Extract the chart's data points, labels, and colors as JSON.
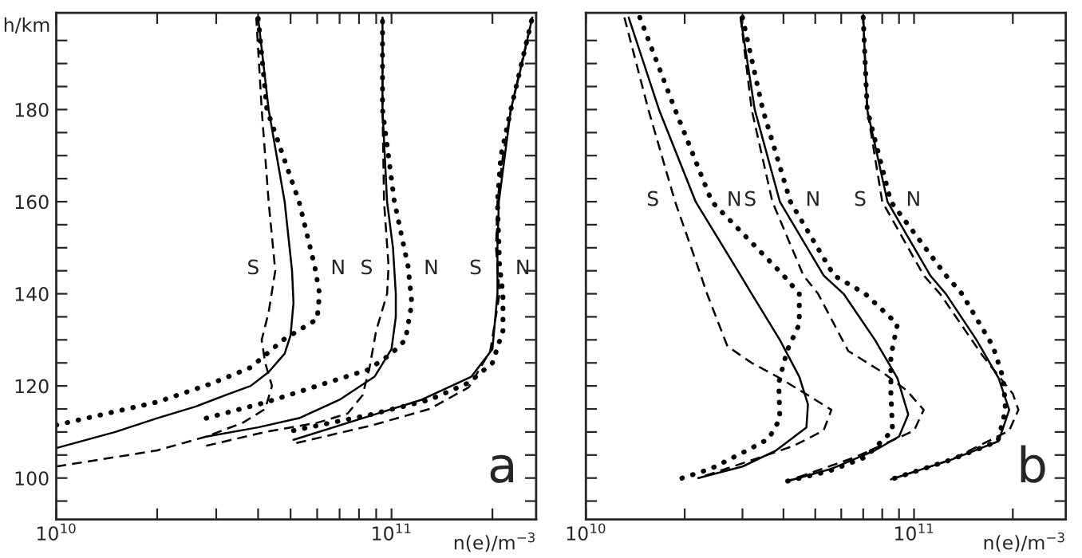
{
  "chart_data": [
    {
      "type": "line",
      "xlabel": "n(e)/m$^{−3}$",
      "ylabel": "h/km",
      "log": "x",
      "xlim": [
        10000000000.0,
        270000000000.0
      ],
      "ylim": [
        91,
        201
      ],
      "xticks": [
        {
          "value": 10000000000.0,
          "label": "10$^{10}$"
        },
        {
          "value": 20000000000.0,
          "label": null
        },
        {
          "value": 30000000000.0,
          "label": null
        },
        {
          "value": 40000000000.0,
          "label": null
        },
        {
          "value": 50000000000.0,
          "label": null
        },
        {
          "value": 60000000000.0,
          "label": null
        },
        {
          "value": 70000000000.0,
          "label": null
        },
        {
          "value": 80000000000.0,
          "label": null
        },
        {
          "value": 90000000000.0,
          "label": null
        },
        {
          "value": 100000000000.0,
          "label": "10$^{11}$"
        },
        {
          "value": 200000000000.0,
          "label": null
        }
      ],
      "yticks": [
        {
          "value": 95,
          "label": null
        },
        100,
        {
          "value": 105,
          "label": null
        },
        {
          "value": 110,
          "label": null
        },
        {
          "value": 115,
          "label": null
        },
        120,
        {
          "value": 125,
          "label": null
        },
        {
          "value": 130,
          "label": null
        },
        {
          "value": 135,
          "label": null
        },
        140,
        {
          "value": 145,
          "label": null
        },
        {
          "value": 150,
          "label": null
        },
        {
          "value": 155,
          "label": null
        },
        160,
        {
          "value": 165,
          "label": null
        },
        {
          "value": 170,
          "label": null
        },
        {
          "value": 175,
          "label": null
        },
        180,
        {
          "value": 185,
          "label": null
        },
        {
          "value": 190,
          "label": null
        },
        {
          "value": 195,
          "label": null
        }
      ],
      "series": [
        {
          "color": "#000000",
          "line_style": "solid",
          "x": [
            10000000000.0,
            15000000000.0,
            20000000000.0,
            26000000000.0,
            32000000000.0,
            38000000000.0,
            43000000000.0,
            48000000000.0,
            50000000000.0,
            51000000000.0,
            50500000000.0,
            48000000000.0,
            43000000000.0,
            40000000000.0
          ],
          "values": [
            106.5,
            110,
            113,
            115.5,
            118,
            120,
            123,
            127,
            131,
            138,
            145,
            160,
            180,
            200
          ]
        },
        {
          "color": "#000000",
          "line_style": "dashed",
          "x": [
            10000000000.0,
            20000000000.0,
            28000000000.0,
            36000000000.0,
            42000000000.0,
            44000000000.0,
            42000000000.0,
            41000000000.0,
            43000000000.0,
            45000000000.0,
            43000000000.0,
            41000000000.0,
            39500000000.0
          ],
          "values": [
            102.5,
            106,
            109,
            112,
            115,
            120,
            125,
            130,
            136,
            145,
            160,
            180,
            200
          ]
        },
        {
          "color": "#000000",
          "line_style": "dotted",
          "x": [
            10000000000.0,
            20000000000.0,
            29000000000.0,
            38000000000.0,
            47500000000.0,
            60000000000.0,
            61000000000.0,
            59000000000.0,
            53000000000.0,
            42500000000.0,
            40000000000.0
          ],
          "values": [
            111.5,
            116.5,
            120.5,
            124,
            130,
            134.5,
            140,
            146,
            160,
            180,
            200
          ]
        },
        {
          "color": "#000000",
          "line_style": "solid",
          "x": [
            28000000000.0,
            40000000000.0,
            53000000000.0,
            70000000000.0,
            89000000000.0,
            100000000000.0,
            103000000000.0,
            103000000000.0,
            101000000000.0,
            97000000000.0,
            94000000000.0,
            94000000000.0
          ],
          "values": [
            109,
            111,
            113,
            117,
            122,
            128,
            135,
            140,
            150,
            160,
            180,
            200
          ]
        },
        {
          "color": "#000000",
          "line_style": "dashed",
          "x": [
            28000000000.0,
            42000000000.0,
            60000000000.0,
            74000000000.0,
            82000000000.0,
            86000000000.0,
            90000000000.0,
            97000000000.0,
            98000000000.0,
            95000000000.0,
            94000000000.0,
            94000000000.0
          ],
          "values": [
            107,
            110,
            112,
            114,
            118,
            124,
            132,
            140,
            146,
            160,
            180,
            200
          ]
        },
        {
          "color": "#000000",
          "line_style": "dotted",
          "x": [
            28000000000.0,
            42500000000.0,
            60000000000.0,
            85000000000.0,
            100000000000.0,
            110000000000.0,
            115000000000.0,
            112000000000.0,
            102000000000.0,
            94000000000.0,
            94000000000.0
          ],
          "values": [
            113,
            116.5,
            120,
            123.5,
            127,
            130,
            138,
            146,
            160,
            180,
            200
          ]
        },
        {
          "color": "#000000",
          "line_style": "solid",
          "x": [
            51000000000.0,
            82000000000.0,
            123000000000.0,
            173000000000.0,
            200000000000.0,
            207000000000.0,
            207000000000.0,
            209000000000.0,
            227000000000.0,
            245000000000.0,
            263000000000.0
          ],
          "values": [
            108.3,
            113,
            117,
            122,
            128,
            140,
            150,
            160,
            180,
            190,
            200
          ]
        },
        {
          "color": "#000000",
          "line_style": "dashed",
          "x": [
            52000000000.0,
            87000000000.0,
            130000000000.0,
            170000000000.0,
            197000000000.0,
            210000000000.0,
            205000000000.0,
            207000000000.0,
            215000000000.0,
            227000000000.0,
            263000000000.0
          ],
          "values": [
            107.6,
            111.4,
            115,
            119.7,
            127.6,
            140,
            150,
            160,
            170,
            180,
            200
          ]
        },
        {
          "color": "#000000",
          "line_style": "dotted",
          "x": [
            51000000000.0,
            87000000000.0,
            130000000000.0,
            170000000000.0,
            200000000000.0,
            215000000000.0,
            215000000000.0,
            210000000000.0,
            207000000000.0,
            212000000000.0,
            227000000000.0,
            263000000000.0
          ],
          "values": [
            110.3,
            113.8,
            117,
            120.7,
            125,
            132,
            140,
            146,
            160,
            170,
            180,
            200
          ]
        }
      ],
      "annotations": [
        "S",
        "N",
        "S",
        "N",
        "S",
        "N",
        "a"
      ]
    },
    {
      "type": "line",
      "xlabel": "n(e)/m$^{−3}$",
      "log": "x",
      "tick_labels": "x",
      "xlim": [
        10000000000.0,
        290000000000.0
      ],
      "ylim": [
        91,
        201
      ],
      "xticks": [
        {
          "value": 10000000000.0,
          "label": "10$^{10}$"
        },
        {
          "value": 20000000000.0,
          "label": null
        },
        {
          "value": 30000000000.0,
          "label": null
        },
        {
          "value": 40000000000.0,
          "label": null
        },
        {
          "value": 50000000000.0,
          "label": null
        },
        {
          "value": 60000000000.0,
          "label": null
        },
        {
          "value": 70000000000.0,
          "label": null
        },
        {
          "value": 80000000000.0,
          "label": null
        },
        {
          "value": 90000000000.0,
          "label": null
        },
        {
          "value": 100000000000.0,
          "label": "10$^{11}$"
        },
        {
          "value": 200000000000.0,
          "label": null
        }
      ],
      "yticks": [
        95,
        100,
        105,
        110,
        115,
        120,
        125,
        130,
        135,
        140,
        145,
        150,
        155,
        160,
        165,
        170,
        175,
        180,
        185,
        190,
        195
      ],
      "series": [
        {
          "color": "#000000",
          "line_style": "solid",
          "x": [
            13500000000.0,
            16700000000.0,
            21600000000.0,
            29600000000.0,
            32000000000.0,
            39000000000.0,
            44700000000.0,
            47500000000.0,
            47000000000.0,
            38000000000.0,
            30000000000.0,
            22000000000.0
          ],
          "values": [
            200,
            180,
            160,
            144,
            140,
            130,
            122,
            116,
            111,
            106,
            102.5,
            100
          ]
        },
        {
          "color": "#000000",
          "line_style": "dashed",
          "x": [
            13100000000.0,
            15500000000.0,
            18700000000.0,
            22400000000.0,
            23400000000.0,
            27000000000.0,
            32000000000.0,
            39000000000.0,
            50000000000.0,
            56000000000.0,
            53000000000.0,
            43000000000.0,
            34000000000.0,
            22000000000.0
          ],
          "values": [
            200,
            180,
            160,
            144,
            140,
            128.6,
            125,
            121.7,
            117,
            114.8,
            110.3,
            107,
            104.5,
            100
          ]
        },
        {
          "color": "#000000",
          "line_style": "dotted",
          "x": [
            14600000000.0,
            18700000000.0,
            24200000000.0,
            40000000000.0,
            44700000000.0,
            44700000000.0,
            41000000000.0,
            38700000000.0,
            39000000000.0,
            36000000000.0,
            31000000000.0,
            24000000000.0,
            18700000000.0
          ],
          "values": [
            200,
            180,
            160,
            144,
            140,
            133.4,
            127.6,
            120.7,
            112.8,
            108.5,
            106,
            102,
            99.5
          ]
        },
        {
          "color": "#000000",
          "line_style": "solid",
          "x": [
            29600000000.0,
            32700000000.0,
            39000000000.0,
            53000000000.0,
            61000000000.0,
            76000000000.0,
            89000000000.0,
            96000000000.0,
            90000000000.0,
            76000000000.0,
            56000000000.0,
            41000000000.0
          ],
          "values": [
            200,
            180,
            160,
            144,
            140,
            130,
            121.7,
            113.8,
            109,
            106,
            102,
            99.3
          ]
        },
        {
          "color": "#000000",
          "line_style": "dashed",
          "x": [
            29600000000.0,
            32000000000.0,
            37000000000.0,
            46000000000.0,
            51000000000.0,
            63000000000.0,
            80000000000.0,
            95000000000.0,
            107000000000.0,
            100000000000.0,
            66000000000.0,
            41000000000.0
          ],
          "values": [
            200,
            180,
            160,
            144,
            140,
            127.6,
            123,
            119,
            114.8,
            110.3,
            104.5,
            99.3
          ]
        },
        {
          "color": "#000000",
          "line_style": "dotted",
          "x": [
            30000000000.0,
            34600000000.0,
            42000000000.0,
            57000000000.0,
            71000000000.0,
            89000000000.0,
            85000000000.0,
            85000000000.0,
            86000000000.0,
            71000000000.0,
            55000000000.0,
            41000000000.0
          ],
          "values": [
            200,
            180,
            160,
            144,
            140,
            133.4,
            126.5,
            118.3,
            110.3,
            104.5,
            101.5,
            99.3
          ]
        },
        {
          "color": "#000000",
          "line_style": "solid",
          "x": [
            70000000000.0,
            72000000000.0,
            83000000000.0,
            112000000000.0,
            125000000000.0,
            155000000000.0,
            181000000000.0,
            195000000000.0,
            181000000000.0,
            130000000000.0,
            85000000000.0
          ],
          "values": [
            200,
            180,
            160,
            144,
            140,
            130,
            121.7,
            114.8,
            108,
            104,
            99.7
          ]
        },
        {
          "color": "#000000",
          "line_style": "dashed",
          "x": [
            70000000000.0,
            72000000000.0,
            80000000000.0,
            107000000000.0,
            120000000000.0,
            162000000000.0,
            200000000000.0,
            208000000000.0,
            195000000000.0,
            130000000000.0,
            85000000000.0
          ],
          "values": [
            200,
            180,
            160,
            144,
            140,
            126.5,
            118.3,
            114.8,
            110.3,
            104,
            99.7
          ]
        },
        {
          "color": "#000000",
          "line_style": "dotted",
          "x": [
            70000000000.0,
            72000000000.0,
            85000000000.0,
            125000000000.0,
            140000000000.0,
            174000000000.0,
            187000000000.0,
            190000000000.0,
            180000000000.0,
            130000000000.0,
            85000000000.0
          ],
          "values": [
            200,
            180,
            160,
            144,
            140,
            128.6,
            121.7,
            114.8,
            108,
            104,
            99.7
          ]
        }
      ],
      "annotations": [
        "S",
        "N",
        "S",
        "N",
        "S",
        "N",
        "b"
      ]
    }
  ]
}
